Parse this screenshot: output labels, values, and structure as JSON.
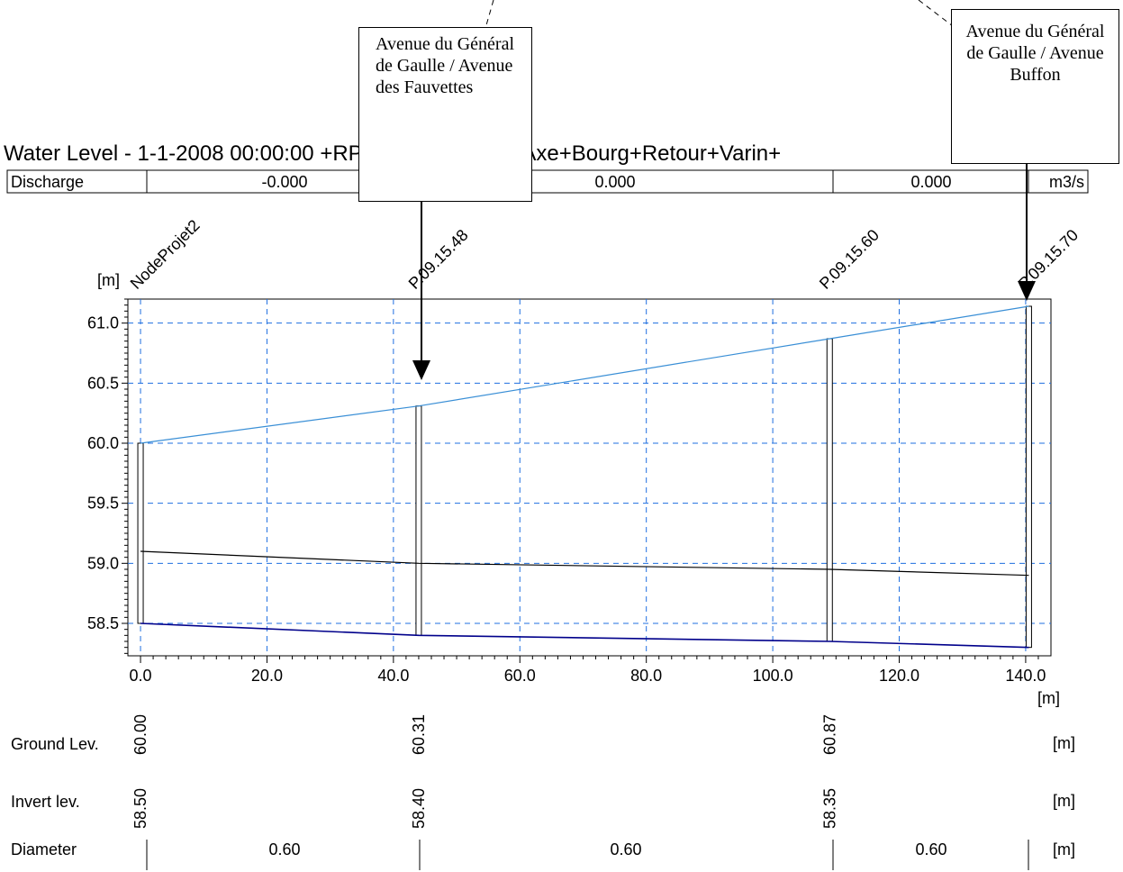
{
  "title": "Water Level - 1-1-2008 00:00:00 +RPSud_S6MODIF+Axe+Bourg+Retour+Varin+",
  "discharge": {
    "label": "Discharge",
    "values": [
      "-0.000",
      "0.000",
      "0.000"
    ],
    "unit": "m3/s"
  },
  "nodes": [
    "NodeProjet2",
    "P.09.15.48",
    "P.09.15.60",
    "P.09.15.70"
  ],
  "callouts": {
    "left": "Avenue du Général de Gaulle / Avenue des Fauvettes",
    "right": "Avenue du Général de Gaulle / Avenue Buffon"
  },
  "bottom_table": {
    "ground": {
      "label": "Ground Lev.",
      "values": [
        "60.00",
        "60.31",
        "60.87"
      ],
      "unit": "[m]"
    },
    "invert": {
      "label": "Invert lev.",
      "values": [
        "58.50",
        "58.40",
        "58.35"
      ],
      "unit": "[m]"
    },
    "diameter": {
      "label": "Diameter",
      "values": [
        "0.60",
        "0.60",
        "0.60"
      ],
      "unit": "[m]"
    }
  },
  "chart_data": {
    "type": "line",
    "title": "Water Level - 1-1-2008 00:00:00 +RPSud_S6MODIF+Axe+Bourg+Retour+Varin+",
    "xlabel": "[m]",
    "ylabel": "[m]",
    "xlim": [
      -2,
      144
    ],
    "ylim": [
      58.23,
      61.2
    ],
    "xticks": [
      0,
      20,
      40,
      60,
      80,
      100,
      120,
      140
    ],
    "xtick_labels": [
      "0.0",
      "20.0",
      "40.0",
      "60.0",
      "80.0",
      "100.0",
      "120.0",
      "140.0"
    ],
    "yticks": [
      58.5,
      59.0,
      59.5,
      60.0,
      60.5,
      61.0
    ],
    "ytick_labels": [
      "58.5",
      "59.0",
      "59.5",
      "60.0",
      "60.5",
      "61.0"
    ],
    "grid": true,
    "nodes_x": [
      0,
      44,
      109,
      140.5
    ],
    "series": [
      {
        "x": [
          0,
          44,
          109,
          140.5
        ],
        "y": [
          60.0,
          60.31,
          60.87,
          61.14
        ],
        "color": "#3a8fd6"
      },
      {
        "x": [
          0,
          44,
          109,
          140.5
        ],
        "y": [
          59.1,
          59.0,
          58.95,
          58.9
        ],
        "color": "#000000"
      },
      {
        "x": [
          0,
          44,
          109,
          140.5
        ],
        "y": [
          58.5,
          58.4,
          58.35,
          58.3
        ],
        "color": "#00008b"
      }
    ],
    "manholes": [
      {
        "x": 0,
        "bottom": 58.5,
        "top": 60.0
      },
      {
        "x": 44,
        "bottom": 58.4,
        "top": 60.31
      },
      {
        "x": 109,
        "bottom": 58.35,
        "top": 60.87
      },
      {
        "x": 140.5,
        "bottom": 58.3,
        "top": 61.14
      }
    ]
  },
  "colors": {
    "grid": "#1f6fe0",
    "water": "#3a8fd6",
    "invert": "#00008b",
    "crown": "#000000"
  }
}
